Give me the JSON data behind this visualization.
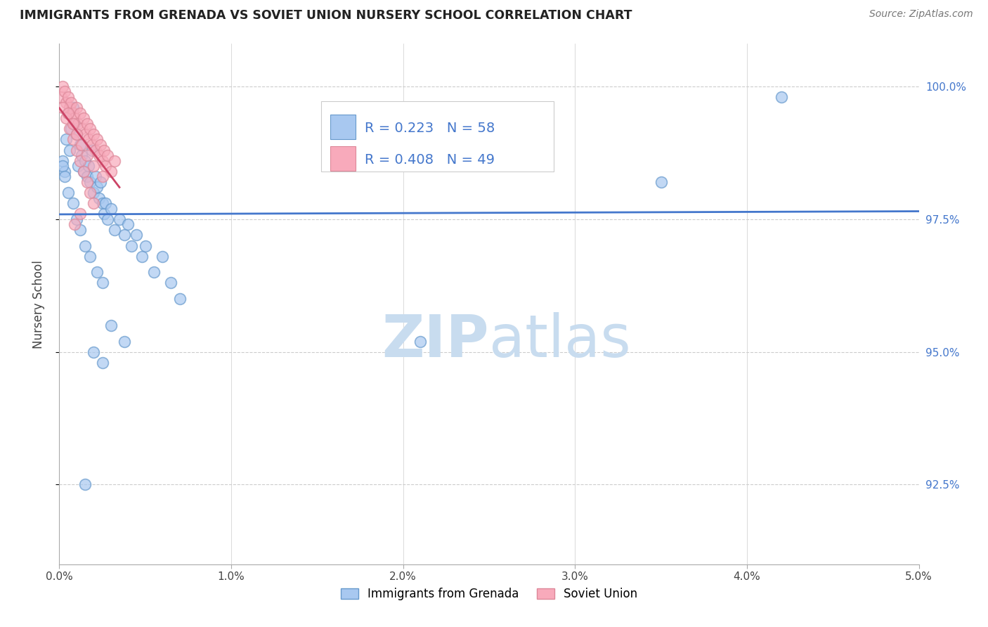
{
  "title": "IMMIGRANTS FROM GRENADA VS SOVIET UNION NURSERY SCHOOL CORRELATION CHART",
  "source": "Source: ZipAtlas.com",
  "ylabel": "Nursery School",
  "y_ticks": [
    92.5,
    95.0,
    97.5,
    100.0
  ],
  "x_min": 0.0,
  "x_max": 5.0,
  "y_min": 91.0,
  "y_max": 100.8,
  "legend_blue_R": 0.223,
  "legend_blue_N": 58,
  "legend_pink_R": 0.408,
  "legend_pink_N": 49,
  "label_blue": "Immigrants from Grenada",
  "label_pink": "Soviet Union",
  "blue_fill": "#A8C8F0",
  "pink_fill": "#F8AABB",
  "blue_edge": "#6699CC",
  "pink_edge": "#DD8899",
  "blue_line": "#4477CC",
  "pink_line": "#CC4466",
  "watermark_color": "#C8DCEF",
  "grenada_x": [
    0.02,
    0.03,
    0.04,
    0.05,
    0.06,
    0.07,
    0.08,
    0.09,
    0.1,
    0.11,
    0.12,
    0.13,
    0.14,
    0.15,
    0.16,
    0.17,
    0.18,
    0.19,
    0.2,
    0.21,
    0.22,
    0.23,
    0.24,
    0.25,
    0.26,
    0.27,
    0.28,
    0.3,
    0.32,
    0.35,
    0.38,
    0.4,
    0.42,
    0.45,
    0.48,
    0.5,
    0.55,
    0.6,
    0.65,
    0.7,
    0.02,
    0.03,
    0.05,
    0.08,
    0.1,
    0.12,
    0.15,
    0.18,
    0.22,
    0.25,
    0.3,
    0.38,
    0.2,
    0.25,
    2.1,
    3.5,
    4.2,
    0.15
  ],
  "grenada_y": [
    98.6,
    98.4,
    99.0,
    99.5,
    98.8,
    99.2,
    99.6,
    99.3,
    99.1,
    98.5,
    98.9,
    98.7,
    98.4,
    98.6,
    98.3,
    98.5,
    98.2,
    98.8,
    98.0,
    98.3,
    98.1,
    97.9,
    98.2,
    97.8,
    97.6,
    97.8,
    97.5,
    97.7,
    97.3,
    97.5,
    97.2,
    97.4,
    97.0,
    97.2,
    96.8,
    97.0,
    96.5,
    96.8,
    96.3,
    96.0,
    98.5,
    98.3,
    98.0,
    97.8,
    97.5,
    97.3,
    97.0,
    96.8,
    96.5,
    96.3,
    95.5,
    95.2,
    95.0,
    94.8,
    95.2,
    98.2,
    99.8,
    92.5
  ],
  "soviet_x": [
    0.01,
    0.02,
    0.03,
    0.04,
    0.05,
    0.06,
    0.07,
    0.08,
    0.09,
    0.1,
    0.11,
    0.12,
    0.13,
    0.14,
    0.15,
    0.16,
    0.17,
    0.18,
    0.19,
    0.2,
    0.21,
    0.22,
    0.23,
    0.24,
    0.25,
    0.26,
    0.27,
    0.28,
    0.3,
    0.32,
    0.02,
    0.04,
    0.06,
    0.08,
    0.1,
    0.12,
    0.14,
    0.16,
    0.18,
    0.2,
    0.05,
    0.08,
    0.1,
    0.13,
    0.16,
    0.2,
    0.25,
    0.12,
    0.09
  ],
  "soviet_y": [
    99.8,
    100.0,
    99.9,
    99.7,
    99.8,
    99.6,
    99.7,
    99.5,
    99.4,
    99.6,
    99.3,
    99.5,
    99.2,
    99.4,
    99.1,
    99.3,
    99.0,
    99.2,
    98.9,
    99.1,
    98.8,
    99.0,
    98.7,
    98.9,
    98.6,
    98.8,
    98.5,
    98.7,
    98.4,
    98.6,
    99.6,
    99.4,
    99.2,
    99.0,
    98.8,
    98.6,
    98.4,
    98.2,
    98.0,
    97.8,
    99.5,
    99.3,
    99.1,
    98.9,
    98.7,
    98.5,
    98.3,
    97.6,
    97.4
  ]
}
